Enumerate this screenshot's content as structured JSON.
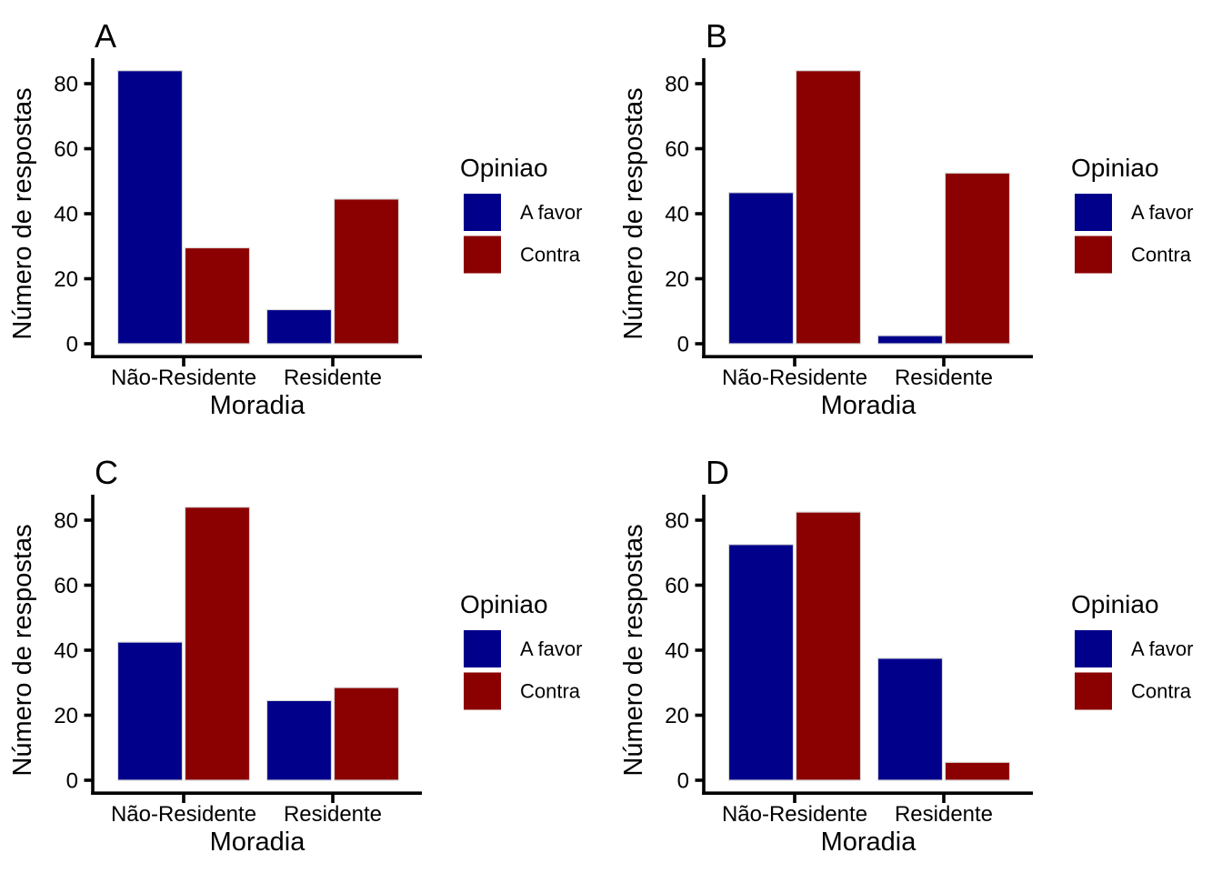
{
  "figure": {
    "background": "#FFFFFF",
    "layout": "2x2-grid",
    "panel_labels": [
      "A",
      "B",
      "C",
      "D"
    ]
  },
  "colors": {
    "a_favor": "#00008B",
    "contra": "#8B0000",
    "bar_border": "#D9D9D9",
    "axis": "#000000",
    "text": "#000000"
  },
  "chart_data": [
    {
      "type": "bar",
      "panel_label": "A",
      "title": "",
      "categories": [
        "Não-Residente",
        "Residente"
      ],
      "series": [
        {
          "name": "A favor",
          "color": "#00008B",
          "values": [
            84,
            10.5
          ]
        },
        {
          "name": "Contra",
          "color": "#8B0000",
          "values": [
            29.5,
            44.5
          ]
        }
      ],
      "xlabel": "Moradia",
      "ylabel": "Número de respostas",
      "yticks": [
        0,
        20,
        40,
        60,
        80
      ],
      "ylim": [
        0,
        88
      ],
      "grid": false,
      "legend_title": "Opiniao",
      "legend_position": "right"
    },
    {
      "type": "bar",
      "panel_label": "B",
      "title": "",
      "categories": [
        "Não-Residente",
        "Residente"
      ],
      "series": [
        {
          "name": "A favor",
          "color": "#00008B",
          "values": [
            46.5,
            2.5
          ]
        },
        {
          "name": "Contra",
          "color": "#8B0000",
          "values": [
            84,
            52.5
          ]
        }
      ],
      "xlabel": "Moradia",
      "ylabel": "Número de respostas",
      "yticks": [
        0,
        20,
        40,
        60,
        80
      ],
      "ylim": [
        0,
        88
      ],
      "grid": false,
      "legend_title": "Opiniao",
      "legend_position": "right"
    },
    {
      "type": "bar",
      "panel_label": "C",
      "title": "",
      "categories": [
        "Não-Residente",
        "Residente"
      ],
      "series": [
        {
          "name": "A favor",
          "color": "#00008B",
          "values": [
            42.5,
            24.5
          ]
        },
        {
          "name": "Contra",
          "color": "#8B0000",
          "values": [
            84,
            28.5
          ]
        }
      ],
      "xlabel": "Moradia",
      "ylabel": "Número de respostas",
      "yticks": [
        0,
        20,
        40,
        60,
        80
      ],
      "ylim": [
        0,
        88
      ],
      "grid": false,
      "legend_title": "Opiniao",
      "legend_position": "right"
    },
    {
      "type": "bar",
      "panel_label": "D",
      "title": "",
      "categories": [
        "Não-Residente",
        "Residente"
      ],
      "series": [
        {
          "name": "A favor",
          "color": "#00008B",
          "values": [
            72.5,
            37.5
          ]
        },
        {
          "name": "Contra",
          "color": "#8B0000",
          "values": [
            82.5,
            5.5
          ]
        }
      ],
      "xlabel": "Moradia",
      "ylabel": "Número de respostas",
      "yticks": [
        0,
        20,
        40,
        60,
        80
      ],
      "ylim": [
        0,
        88
      ],
      "grid": false,
      "legend_title": "Opiniao",
      "legend_position": "right"
    }
  ]
}
